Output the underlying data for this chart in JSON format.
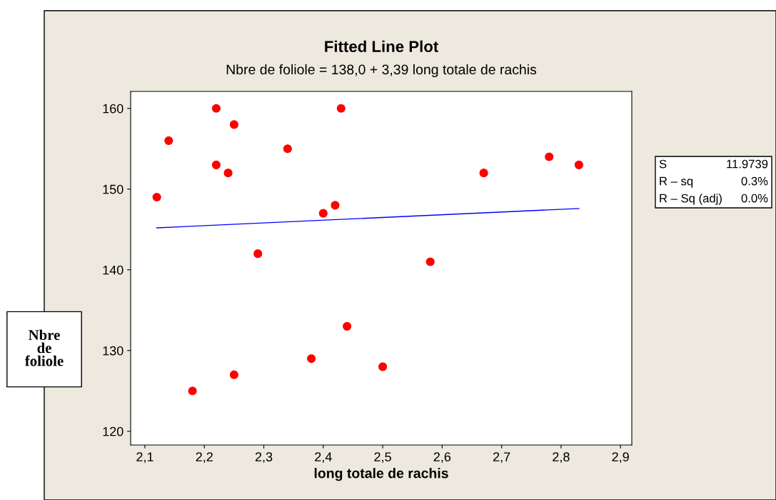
{
  "chart_data": {
    "type": "scatter",
    "title": "Fitted Line Plot",
    "subtitle": "Nbre de foliole = 138,0 + 3,39 long totale de rachis",
    "xlabel": "long totale de rachis",
    "ylabel": "Nbre\nde\nfoliole",
    "series": [
      {
        "color": "#ff0000",
        "x": [
          2.12,
          2.14,
          2.22,
          2.22,
          2.25,
          2.24,
          2.18,
          2.25,
          2.29,
          2.34,
          2.38,
          2.4,
          2.42,
          2.43,
          2.44,
          2.5,
          2.58,
          2.67,
          2.78,
          2.83
        ],
        "values": [
          149,
          156,
          160,
          153,
          158,
          152,
          125,
          127,
          142,
          155,
          129,
          147,
          148,
          160,
          133,
          128,
          141,
          152,
          154,
          153
        ]
      },
      {
        "type": "line",
        "color": "#0000ff",
        "marker": "none",
        "x": [
          2.12,
          2.83
        ],
        "values": [
          145.2,
          147.6
        ]
      }
    ],
    "xlim": [
      2.076,
      2.919
    ],
    "xticks": [
      {
        "value": 2.1,
        "label": "2,1"
      },
      {
        "value": 2.2,
        "label": "2,2"
      },
      {
        "value": 2.3,
        "label": "2,3"
      },
      {
        "value": 2.4,
        "label": "2,4"
      },
      {
        "value": 2.5,
        "label": "2,5"
      },
      {
        "value": 2.6,
        "label": "2,6"
      },
      {
        "value": 2.7,
        "label": "2,7"
      },
      {
        "value": 2.8,
        "label": "2,8"
      },
      {
        "value": 2.9,
        "label": "2,9"
      }
    ],
    "ylim": [
      118.3,
      162.1
    ],
    "yticks": [
      120,
      130,
      140,
      150,
      160
    ],
    "annotations": [
      "S",
      "11.9739",
      "R – sq",
      "0.3%",
      "R – Sq (adj)",
      "0.0%"
    ],
    "marker": "circle",
    "grid": false,
    "legend": false
  }
}
